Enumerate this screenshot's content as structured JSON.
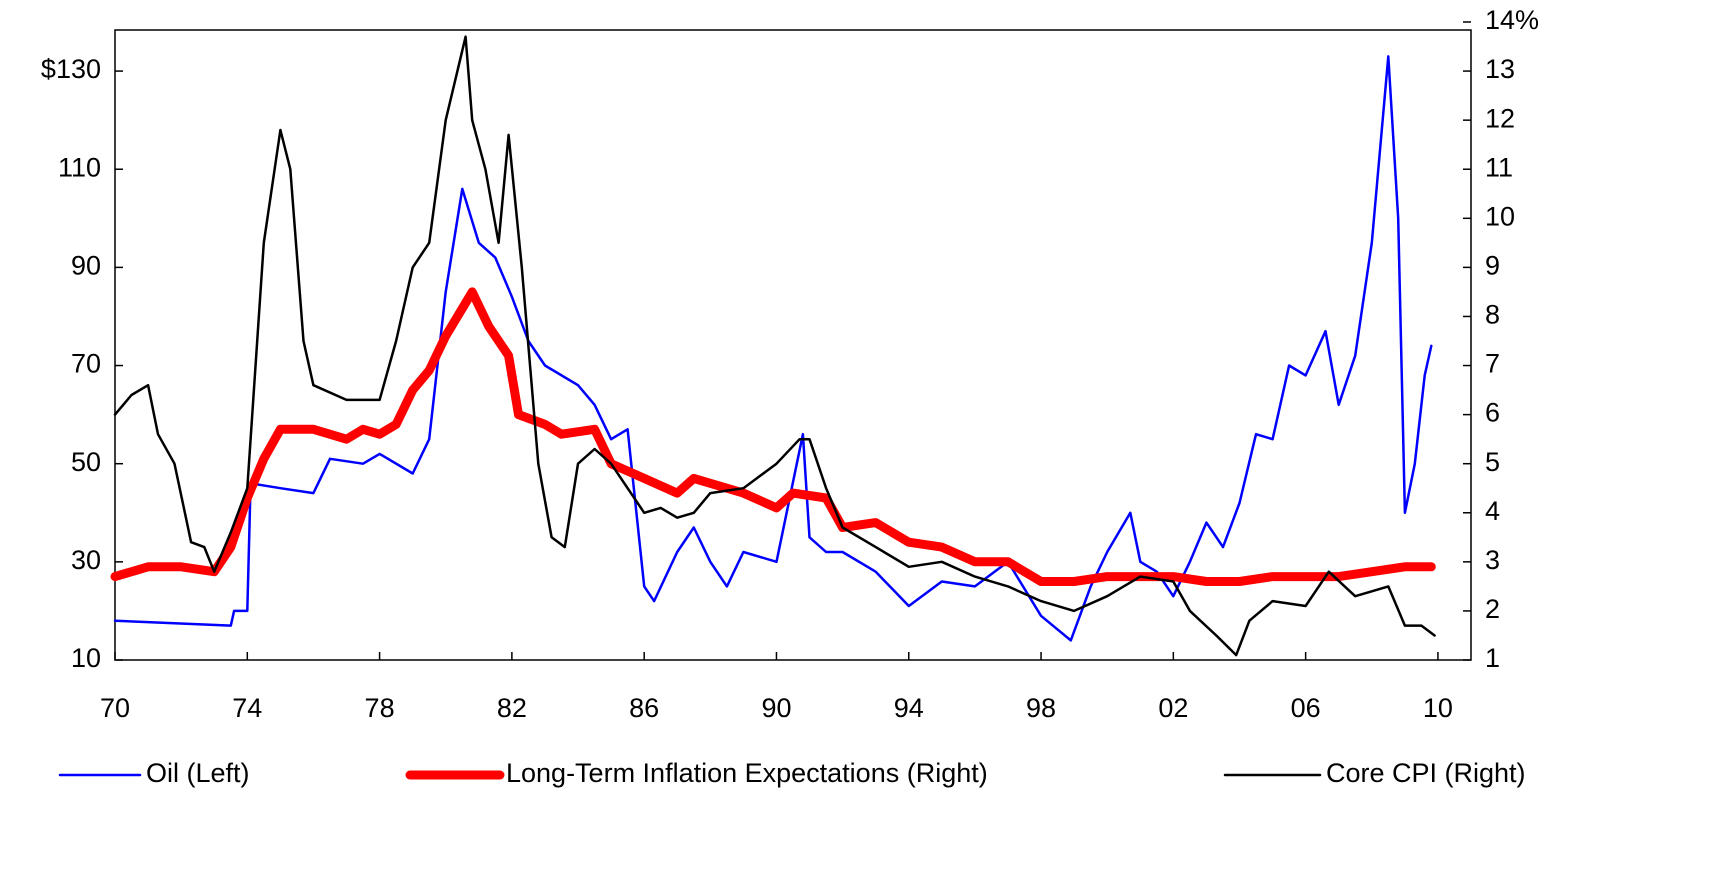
{
  "chart_data": {
    "type": "line",
    "xlim": [
      1970,
      2011
    ],
    "xticks": [
      {
        "value": 1970,
        "label": "70"
      },
      {
        "value": 1974,
        "label": "74"
      },
      {
        "value": 1978,
        "label": "78"
      },
      {
        "value": 1982,
        "label": "82"
      },
      {
        "value": 1986,
        "label": "86"
      },
      {
        "value": 1990,
        "label": "90"
      },
      {
        "value": 1994,
        "label": "94"
      },
      {
        "value": 1998,
        "label": "98"
      },
      {
        "value": 2002,
        "label": "02"
      },
      {
        "value": 2006,
        "label": "06"
      },
      {
        "value": 2010,
        "label": "10"
      }
    ],
    "ylim": [
      10,
      140
    ],
    "yticks": [
      10,
      30,
      50,
      70,
      90,
      110,
      {
        "value": 130,
        "label": "$130"
      }
    ],
    "y2lim": [
      1,
      14
    ],
    "y2ticks": [
      1,
      2,
      3,
      4,
      5,
      6,
      7,
      8,
      9,
      10,
      11,
      12,
      13,
      {
        "value": 14,
        "label": "14%"
      }
    ],
    "series": [
      {
        "name": "Oil (Left)",
        "color": "#0000ff",
        "width": 2.5,
        "axis": "y",
        "x": [
          1970,
          1973.5,
          1973.6,
          1974,
          1974.1,
          1975,
          1976,
          1976.5,
          1977.5,
          1978,
          1979,
          1979.5,
          1980,
          1980.5,
          1981,
          1981.5,
          1982,
          1982.5,
          1983,
          1984,
          1984.5,
          1985,
          1985.5,
          1986,
          1986.3,
          1987,
          1987.5,
          1988,
          1988.5,
          1989,
          1990,
          1990.8,
          1991,
          1991.5,
          1992,
          1993,
          1994,
          1995,
          1996,
          1997,
          1998,
          1998.9,
          1999.5,
          2000,
          2000.7,
          2001,
          2001.5,
          2002,
          2002.5,
          2003,
          2003.5,
          2004,
          2004.5,
          2005,
          2005.5,
          2006,
          2006.6,
          2007,
          2007.5,
          2008,
          2008.5,
          2008.8,
          2009,
          2009.3,
          2009.6,
          2009.8
        ],
        "values": [
          18,
          17,
          20,
          20,
          46,
          45,
          44,
          51,
          50,
          52,
          48,
          55,
          85,
          106,
          95,
          92,
          84,
          75,
          70,
          66,
          62,
          55,
          57,
          25,
          22,
          32,
          37,
          30,
          25,
          32,
          30,
          56,
          35,
          32,
          32,
          28,
          21,
          26,
          25,
          30,
          19,
          14,
          25,
          32,
          40,
          30,
          28,
          23,
          30,
          38,
          33,
          42,
          56,
          55,
          70,
          68,
          77,
          62,
          72,
          95,
          133,
          100,
          40,
          50,
          68,
          74
        ]
      },
      {
        "name": "Long-Term Inflation Expectations (Right)",
        "color": "#ff0000",
        "width": 9,
        "axis": "y2",
        "x": [
          1970,
          1971,
          1972,
          1973,
          1973.5,
          1974,
          1974.5,
          1975,
          1976,
          1977,
          1977.5,
          1978,
          1978.5,
          1979,
          1979.5,
          1980,
          1980.8,
          1981.3,
          1981.9,
          1982.2,
          1983,
          1983.5,
          1984.5,
          1985,
          1986,
          1987,
          1987.5,
          1988,
          1989,
          1990,
          1990.5,
          1991.5,
          1992,
          1993,
          1994,
          1995,
          1996,
          1997,
          1998,
          1999,
          2000,
          2001,
          2002,
          2003,
          2004,
          2005,
          2006,
          2007,
          2008,
          2009,
          2009.8
        ],
        "values": [
          2.7,
          2.9,
          2.9,
          2.8,
          3.3,
          4.3,
          5.1,
          5.7,
          5.7,
          5.5,
          5.7,
          5.6,
          5.8,
          6.5,
          6.9,
          7.6,
          8.5,
          7.8,
          7.2,
          6,
          5.8,
          5.6,
          5.7,
          5,
          4.7,
          4.4,
          4.7,
          4.6,
          4.4,
          4.1,
          4.4,
          4.3,
          3.7,
          3.8,
          3.4,
          3.3,
          3,
          3,
          2.6,
          2.6,
          2.7,
          2.7,
          2.7,
          2.6,
          2.6,
          2.7,
          2.7,
          2.7,
          2.8,
          2.9,
          2.9
        ]
      },
      {
        "name": "Core CPI (Right)",
        "color": "#000000",
        "width": 2.5,
        "axis": "y2",
        "x": [
          1970,
          1970.5,
          1971,
          1971.3,
          1971.8,
          1972.3,
          1972.7,
          1973,
          1973.5,
          1974,
          1974.5,
          1975,
          1975.3,
          1975.7,
          1976,
          1977,
          1978,
          1978.5,
          1979,
          1979.5,
          1980,
          1980.6,
          1980.8,
          1981.2,
          1981.6,
          1981.9,
          1982.3,
          1982.8,
          1983.2,
          1983.6,
          1984,
          1984.5,
          1985,
          1986,
          1986.5,
          1987,
          1987.5,
          1988,
          1989,
          1990,
          1990.7,
          1991,
          1991.5,
          1992,
          1993,
          1994,
          1995,
          1996,
          1997,
          1998,
          1999,
          2000,
          2001,
          2002,
          2002.5,
          2003.3,
          2003.9,
          2004.3,
          2005,
          2006,
          2006.7,
          2007.5,
          2008,
          2008.5,
          2009,
          2009.5,
          2009.9
        ],
        "values": [
          6,
          6.4,
          6.6,
          5.6,
          5,
          3.4,
          3.3,
          2.8,
          3.6,
          4.5,
          9.5,
          11.8,
          11,
          7.5,
          6.6,
          6.3,
          6.3,
          7.5,
          9,
          9.5,
          12,
          13.7,
          12,
          11,
          9.5,
          11.7,
          9,
          5,
          3.5,
          3.3,
          5,
          5.3,
          5,
          4,
          4.1,
          3.9,
          4,
          4.4,
          4.5,
          5,
          5.5,
          5.5,
          4.5,
          3.7,
          3.3,
          2.9,
          3,
          2.7,
          2.5,
          2.2,
          2,
          2.3,
          2.7,
          2.6,
          2,
          1.5,
          1.1,
          1.8,
          2.2,
          2.1,
          2.8,
          2.3,
          2.4,
          2.5,
          1.7,
          1.7,
          1.5
        ]
      }
    ]
  }
}
